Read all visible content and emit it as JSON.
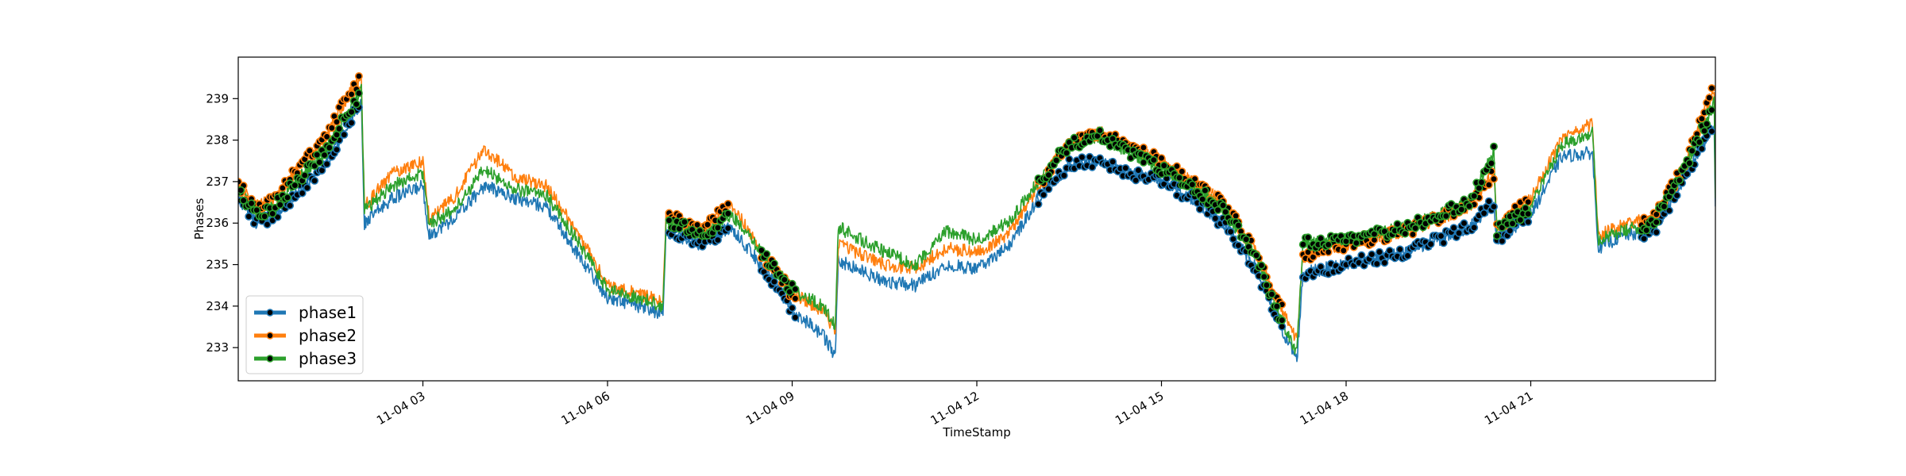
{
  "chart_data": {
    "type": "line",
    "title": "",
    "xlabel": "TimeStamp",
    "ylabel": "Phases",
    "xlim": [
      "11-04 00:00",
      "11-04 24:00"
    ],
    "ylim": [
      232.2,
      240.0
    ],
    "x_ticks": [
      "11-04 03",
      "11-04 06",
      "11-04 09",
      "11-04 12",
      "11-04 15",
      "11-04 18",
      "11-04 21"
    ],
    "y_ticks": [
      233,
      234,
      235,
      236,
      237,
      238,
      239
    ],
    "legend_position": "lower-left",
    "grid": false,
    "series": [
      {
        "name": "phase1",
        "color": "#1f77b4",
        "marker_color": "#000000",
        "x_hours": [
          0.0,
          0.3,
          0.6,
          1.0,
          1.4,
          1.8,
          2.0,
          2.05,
          2.5,
          3.0,
          3.1,
          3.5,
          4.0,
          4.5,
          5.0,
          5.5,
          6.0,
          6.5,
          6.9,
          6.95,
          7.5,
          8.0,
          8.5,
          9.0,
          9.5,
          9.7,
          9.75,
          10.5,
          11.0,
          11.5,
          12.0,
          12.5,
          13.0,
          13.5,
          14.0,
          14.5,
          15.0,
          15.5,
          16.0,
          16.5,
          17.0,
          17.2,
          17.3,
          18.0,
          19.0,
          20.0,
          20.4,
          20.45,
          21.0,
          21.5,
          22.0,
          22.1,
          22.5,
          23.0,
          23.5,
          23.98,
          24.0
        ],
        "values": [
          236.6,
          236.0,
          236.2,
          236.8,
          237.4,
          238.4,
          238.9,
          236.0,
          236.6,
          236.9,
          235.7,
          236.1,
          236.9,
          236.6,
          236.4,
          235.3,
          234.2,
          234.0,
          233.8,
          235.8,
          235.5,
          235.9,
          235.0,
          233.9,
          233.3,
          232.8,
          235.1,
          234.6,
          234.5,
          235.0,
          234.9,
          235.4,
          236.6,
          237.4,
          237.5,
          237.2,
          237.0,
          236.6,
          236.0,
          235.0,
          233.3,
          232.7,
          234.8,
          235.0,
          235.3,
          235.9,
          236.5,
          235.6,
          236.2,
          237.6,
          237.7,
          235.4,
          235.7,
          235.8,
          237.1,
          238.4,
          236.4
        ]
      },
      {
        "name": "phase2",
        "color": "#ff7f0e",
        "marker_color": "#000000",
        "x_hours": [
          0.0,
          0.3,
          0.6,
          1.0,
          1.4,
          1.8,
          2.0,
          2.05,
          2.5,
          3.0,
          3.1,
          3.5,
          4.0,
          4.5,
          5.0,
          5.5,
          6.0,
          6.5,
          6.9,
          6.95,
          7.5,
          8.0,
          8.5,
          9.0,
          9.5,
          9.7,
          9.75,
          10.5,
          11.0,
          11.5,
          12.0,
          12.5,
          13.0,
          13.5,
          14.0,
          14.5,
          15.0,
          15.5,
          16.0,
          16.5,
          17.0,
          17.2,
          17.3,
          18.0,
          19.0,
          20.0,
          20.4,
          20.45,
          21.0,
          21.5,
          22.0,
          22.1,
          22.5,
          23.0,
          23.5,
          23.98,
          24.0
        ],
        "values": [
          236.9,
          236.4,
          236.6,
          237.4,
          238.0,
          239.1,
          239.5,
          236.4,
          237.2,
          237.5,
          236.1,
          236.6,
          237.8,
          237.1,
          236.9,
          235.8,
          234.5,
          234.3,
          234.1,
          236.2,
          235.8,
          236.5,
          235.3,
          234.3,
          233.9,
          233.4,
          235.5,
          235.0,
          234.9,
          235.4,
          235.3,
          235.7,
          236.9,
          237.9,
          238.2,
          237.8,
          237.5,
          237.0,
          236.5,
          235.4,
          233.8,
          233.2,
          235.2,
          235.5,
          235.8,
          236.4,
          237.2,
          235.9,
          236.6,
          238.0,
          238.4,
          235.7,
          236.0,
          236.1,
          237.4,
          239.3,
          236.8
        ]
      },
      {
        "name": "phase3",
        "color": "#2ca02c",
        "marker_color": "#000000",
        "x_hours": [
          0.0,
          0.3,
          0.6,
          1.0,
          1.4,
          1.8,
          2.0,
          2.05,
          2.5,
          3.0,
          3.1,
          3.5,
          4.0,
          4.5,
          5.0,
          5.5,
          6.0,
          6.5,
          6.9,
          6.95,
          7.5,
          8.0,
          8.5,
          9.0,
          9.5,
          9.7,
          9.75,
          10.5,
          11.0,
          11.5,
          12.0,
          12.5,
          13.0,
          13.5,
          14.0,
          14.5,
          15.0,
          15.5,
          16.0,
          16.5,
          17.0,
          17.2,
          17.3,
          18.0,
          19.0,
          20.0,
          20.4,
          20.45,
          21.0,
          21.5,
          22.0,
          22.1,
          22.5,
          23.0,
          23.5,
          23.98,
          24.0
        ],
        "values": [
          236.8,
          236.2,
          236.4,
          237.1,
          237.7,
          238.7,
          239.2,
          236.3,
          236.9,
          237.2,
          236.0,
          236.3,
          237.3,
          236.8,
          236.7,
          235.6,
          234.4,
          234.2,
          234.0,
          236.1,
          235.7,
          236.2,
          235.3,
          234.4,
          234.0,
          233.5,
          235.9,
          235.3,
          235.0,
          235.8,
          235.6,
          236.0,
          237.0,
          237.9,
          238.1,
          237.7,
          237.3,
          236.9,
          236.3,
          235.3,
          233.5,
          232.9,
          235.5,
          235.6,
          235.9,
          236.5,
          237.7,
          235.8,
          236.4,
          237.9,
          238.2,
          235.6,
          235.8,
          236.0,
          237.3,
          238.9,
          236.6
        ]
      }
    ]
  }
}
